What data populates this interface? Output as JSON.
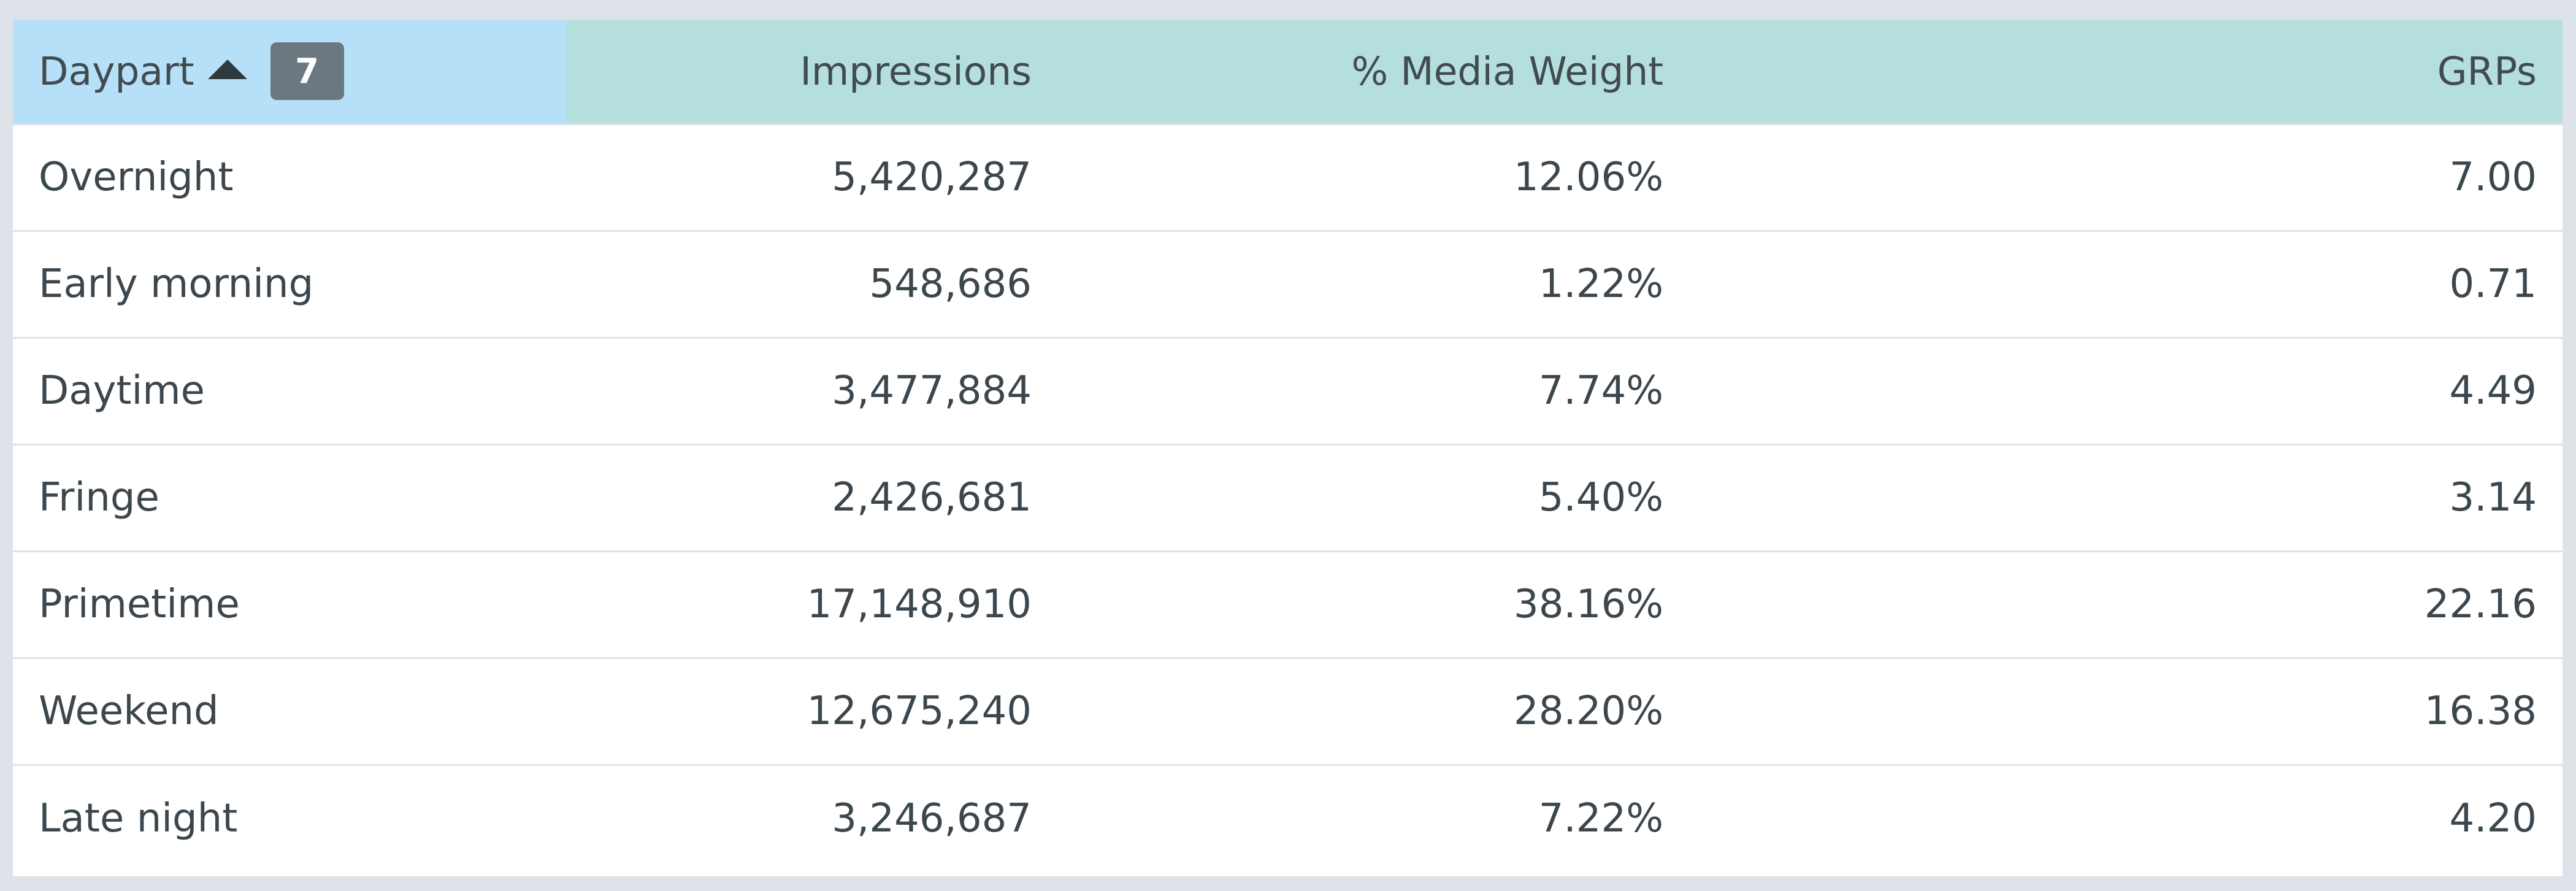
{
  "columns": {
    "daypart": "Daypart",
    "impressions": "Impressions",
    "media_weight": "% Media Weight",
    "grps": "GRPs"
  },
  "sort": {
    "column": "daypart",
    "direction": "ascending",
    "icon": "triangle-up-icon"
  },
  "row_count": "7",
  "rows": [
    {
      "daypart": "Overnight",
      "impressions": "5,420,287",
      "media_weight": "12.06%",
      "grps": "7.00"
    },
    {
      "daypart": "Early morning",
      "impressions": "548,686",
      "media_weight": "1.22%",
      "grps": "0.71"
    },
    {
      "daypart": "Daytime",
      "impressions": "3,477,884",
      "media_weight": "7.74%",
      "grps": "4.49"
    },
    {
      "daypart": "Fringe",
      "impressions": "2,426,681",
      "media_weight": "5.40%",
      "grps": "3.14"
    },
    {
      "daypart": "Primetime",
      "impressions": "17,148,910",
      "media_weight": "38.16%",
      "grps": "22.16"
    },
    {
      "daypart": "Weekend",
      "impressions": "12,675,240",
      "media_weight": "28.20%",
      "grps": "16.38"
    },
    {
      "daypart": "Late night",
      "impressions": "3,246,687",
      "media_weight": "7.22%",
      "grps": "4.20"
    }
  ],
  "colors": {
    "page_background": "#dde3e8",
    "daypart_header": "#b6e0f7",
    "header": "#b4dfdc",
    "badge": "#6b7880",
    "text": "#3c464d",
    "row_divider": "#dce3e8"
  }
}
